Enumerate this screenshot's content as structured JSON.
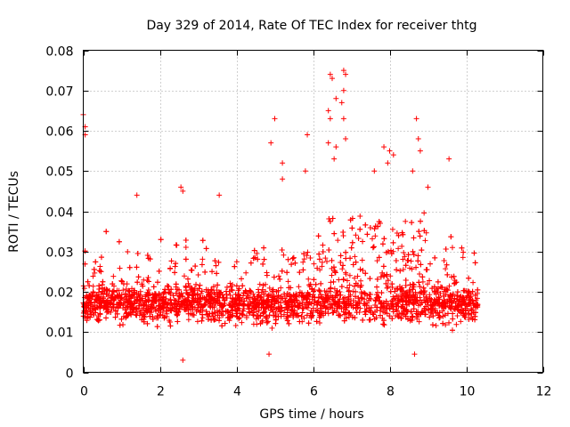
{
  "chart_data": {
    "type": "scatter",
    "title": "Day 329 of 2014, Rate Of TEC Index for receiver thtg",
    "xlabel": "GPS time / hours",
    "ylabel": "ROTI / TECUs",
    "xlim": [
      0,
      12
    ],
    "ylim": [
      0,
      0.08
    ],
    "xticks": [
      "0",
      "2",
      "4",
      "6",
      "8",
      "10",
      "12"
    ],
    "yticks": [
      "0",
      "0.01",
      "0.02",
      "0.03",
      "0.04",
      "0.05",
      "0.06",
      "0.07",
      "0.08"
    ],
    "grid": true,
    "marker": "+",
    "color": "#ff0000",
    "x_range_of_data": [
      0,
      10.3
    ],
    "typical_range": [
      0.005,
      0.03
    ],
    "notable_points": [
      {
        "x": 0.0,
        "y": 0.064
      },
      {
        "x": 0.05,
        "y": 0.061
      },
      {
        "x": 0.05,
        "y": 0.059
      },
      {
        "x": 2.55,
        "y": 0.046
      },
      {
        "x": 2.6,
        "y": 0.045
      },
      {
        "x": 1.4,
        "y": 0.044
      },
      {
        "x": 3.55,
        "y": 0.044
      },
      {
        "x": 5.0,
        "y": 0.063
      },
      {
        "x": 4.9,
        "y": 0.057
      },
      {
        "x": 5.2,
        "y": 0.052
      },
      {
        "x": 5.2,
        "y": 0.048
      },
      {
        "x": 5.85,
        "y": 0.059
      },
      {
        "x": 5.8,
        "y": 0.05
      },
      {
        "x": 6.45,
        "y": 0.074
      },
      {
        "x": 6.5,
        "y": 0.073
      },
      {
        "x": 6.6,
        "y": 0.068
      },
      {
        "x": 6.8,
        "y": 0.075
      },
      {
        "x": 6.85,
        "y": 0.074
      },
      {
        "x": 6.8,
        "y": 0.07
      },
      {
        "x": 6.75,
        "y": 0.067
      },
      {
        "x": 6.4,
        "y": 0.065
      },
      {
        "x": 6.45,
        "y": 0.063
      },
      {
        "x": 6.8,
        "y": 0.063
      },
      {
        "x": 6.85,
        "y": 0.058
      },
      {
        "x": 6.6,
        "y": 0.056
      },
      {
        "x": 6.55,
        "y": 0.053
      },
      {
        "x": 6.4,
        "y": 0.057
      },
      {
        "x": 7.85,
        "y": 0.056
      },
      {
        "x": 8.0,
        "y": 0.055
      },
      {
        "x": 8.1,
        "y": 0.054
      },
      {
        "x": 7.95,
        "y": 0.052
      },
      {
        "x": 8.7,
        "y": 0.063
      },
      {
        "x": 8.75,
        "y": 0.058
      },
      {
        "x": 8.8,
        "y": 0.055
      },
      {
        "x": 9.55,
        "y": 0.053
      },
      {
        "x": 8.6,
        "y": 0.05
      },
      {
        "x": 9.0,
        "y": 0.046
      },
      {
        "x": 7.6,
        "y": 0.05
      },
      {
        "x": 4.85,
        "y": 0.0045
      },
      {
        "x": 2.6,
        "y": 0.003
      },
      {
        "x": 8.65,
        "y": 0.0045
      }
    ]
  }
}
